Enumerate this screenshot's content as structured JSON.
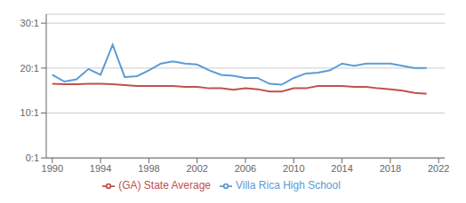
{
  "chart_data": {
    "type": "line",
    "x": [
      1990,
      1991,
      1992,
      1993,
      1994,
      1995,
      1996,
      1997,
      1998,
      1999,
      2000,
      2001,
      2002,
      2003,
      2004,
      2005,
      2006,
      2007,
      2008,
      2009,
      2010,
      2011,
      2012,
      2013,
      2014,
      2015,
      2016,
      2017,
      2018,
      2019,
      2020,
      2021
    ],
    "series": [
      {
        "name": "Villa Rica High School",
        "color": "#5b9bd5",
        "values": [
          18.5,
          17.0,
          17.5,
          19.8,
          18.5,
          25.2,
          18.0,
          18.2,
          19.5,
          21.0,
          21.5,
          21.0,
          20.8,
          19.5,
          18.5,
          18.3,
          17.8,
          17.8,
          16.5,
          16.3,
          17.8,
          18.8,
          19.0,
          19.5,
          21.0,
          20.5,
          21.0,
          21.0,
          21.0,
          20.5,
          20.0,
          20.0
        ]
      },
      {
        "name": "(GA) State Average",
        "color": "#c0504d",
        "values": [
          16.5,
          16.4,
          16.4,
          16.5,
          16.5,
          16.4,
          16.2,
          16.0,
          16.0,
          16.0,
          16.0,
          15.8,
          15.8,
          15.5,
          15.5,
          15.2,
          15.5,
          15.3,
          14.8,
          14.8,
          15.5,
          15.5,
          16.0,
          16.0,
          16.0,
          15.8,
          15.8,
          15.5,
          15.3,
          15.0,
          14.5,
          14.3
        ]
      }
    ],
    "xlim": [
      1989.5,
      2022.5
    ],
    "xticks": [
      1990,
      1994,
      1998,
      2002,
      2006,
      2010,
      2014,
      2018,
      2022
    ],
    "ylim": [
      0,
      32
    ],
    "yticks": [
      {
        "value": 0,
        "label": "0:1"
      },
      {
        "value": 10,
        "label": "10:1"
      },
      {
        "value": 20,
        "label": "20:1"
      },
      {
        "value": 30,
        "label": "30:1"
      }
    ],
    "grid": true,
    "legend": "bottom"
  }
}
